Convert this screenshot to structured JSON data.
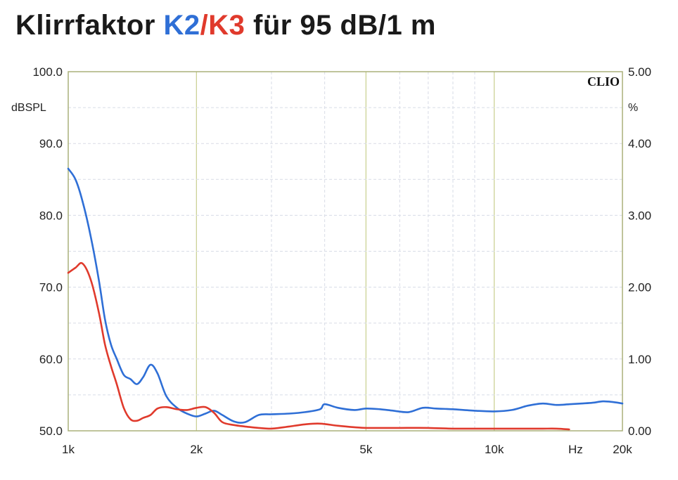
{
  "title": {
    "prefix": "Klirrfaktor ",
    "k2": "K2",
    "slash": "/",
    "k3": "K3",
    "suffix": " für 95 dB/1 m"
  },
  "colors": {
    "k2": "#2f6fd6",
    "k3": "#e03a2c",
    "grid_major": "#c8cf8f",
    "grid_minor": "#d8dce6",
    "frame": "#aab07a"
  },
  "chart_data": {
    "type": "line",
    "title": "Klirrfaktor K2/K3 für 95 dB/1 m",
    "watermark": "CLIO",
    "x_scale": "log",
    "xlim": [
      1000,
      20000
    ],
    "x_ticks": [
      {
        "value": 1000,
        "label": "1k"
      },
      {
        "value": 2000,
        "label": "2k"
      },
      {
        "value": 5000,
        "label": "5k"
      },
      {
        "value": 10000,
        "label": "10k"
      },
      {
        "value": 20000,
        "label": "20k"
      }
    ],
    "x_unit": "Hz",
    "ylim": [
      50,
      100
    ],
    "ylabel": "dBSPL",
    "y_ticks": [
      "50.0",
      "60.0",
      "70.0",
      "80.0",
      "90.0",
      "100.0"
    ],
    "y2lim": [
      0,
      5
    ],
    "y2label": "%",
    "y2_ticks": [
      "0.00",
      "1.00",
      "2.00",
      "3.00",
      "4.00",
      "5.00"
    ],
    "series": [
      {
        "name": "K2",
        "color": "#2f6fd6",
        "x": [
          1000,
          1040,
          1080,
          1130,
          1180,
          1220,
          1260,
          1300,
          1350,
          1400,
          1450,
          1500,
          1560,
          1620,
          1700,
          1800,
          1900,
          2000,
          2100,
          2200,
          2300,
          2450,
          2600,
          2800,
          3000,
          3300,
          3600,
          3900,
          4000,
          4300,
          4700,
          5000,
          5400,
          5800,
          6300,
          6800,
          7300,
          8000,
          9000,
          10000,
          11000,
          12000,
          13000,
          14000,
          15000,
          16000,
          17000,
          18000,
          19000,
          20000
        ],
        "values": [
          86.5,
          85,
          82,
          77,
          71,
          65.5,
          62,
          60,
          57.8,
          57.2,
          56.5,
          57.5,
          59.2,
          58,
          54.8,
          53.2,
          52.4,
          52,
          52.4,
          52.8,
          52.2,
          51.3,
          51.2,
          52.2,
          52.3,
          52.4,
          52.6,
          53.0,
          53.7,
          53.2,
          52.9,
          53.1,
          53.0,
          52.8,
          52.6,
          53.2,
          53.1,
          53.0,
          52.8,
          52.7,
          52.9,
          53.5,
          53.8,
          53.6,
          53.7,
          53.8,
          53.9,
          54.1,
          54.0,
          53.8
        ]
      },
      {
        "name": "K3",
        "color": "#e03a2c",
        "x": [
          1000,
          1040,
          1080,
          1130,
          1180,
          1220,
          1260,
          1300,
          1350,
          1400,
          1450,
          1500,
          1560,
          1620,
          1700,
          1800,
          1900,
          2000,
          2100,
          2200,
          2300,
          2450,
          2600,
          2800,
          3000,
          3300,
          3600,
          3900,
          4300,
          4700,
          5000,
          5500,
          6000,
          7000,
          8000,
          9000,
          10000,
          11000,
          12000,
          13000,
          14000,
          15000
        ],
        "values": [
          72,
          72.7,
          73.3,
          71,
          66.5,
          62,
          59,
          56.5,
          53.2,
          51.6,
          51.4,
          51.8,
          52.2,
          53.1,
          53.3,
          53.0,
          52.9,
          53.2,
          53.3,
          52.5,
          51.2,
          50.8,
          50.6,
          50.4,
          50.3,
          50.6,
          50.9,
          51.0,
          50.7,
          50.5,
          50.4,
          50.4,
          50.4,
          50.4,
          50.3,
          50.3,
          50.3,
          50.3,
          50.3,
          50.3,
          50.3,
          50.2
        ]
      }
    ]
  }
}
